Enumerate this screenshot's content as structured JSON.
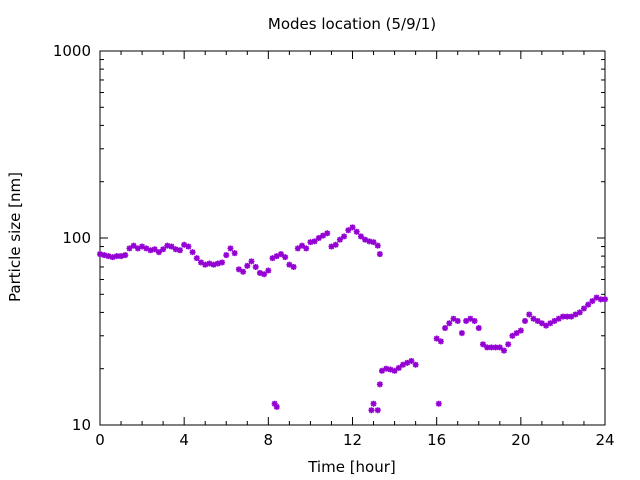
{
  "chart_data": {
    "type": "scatter",
    "title": "Modes location (5/9/1)",
    "xlabel": "Time [hour]",
    "ylabel": "Particle size [nm]",
    "xlim": [
      0,
      24
    ],
    "ylim": [
      10,
      1000
    ],
    "yscale": "log",
    "xticks": [
      0,
      4,
      8,
      12,
      16,
      20,
      24
    ],
    "yticks": [
      10,
      100,
      1000
    ],
    "xtick_labels": [
      "0",
      "4",
      "8",
      "12",
      "16",
      "20",
      "24"
    ],
    "ytick_labels": [
      "10",
      "100",
      "1000"
    ],
    "marker_color": "#9400d3",
    "marker": "star",
    "grid": false,
    "series": [
      {
        "points": [
          [
            0.0,
            82
          ],
          [
            0.2,
            81
          ],
          [
            0.4,
            80
          ],
          [
            0.6,
            79
          ],
          [
            0.8,
            80
          ],
          [
            1.0,
            80
          ],
          [
            1.2,
            81
          ],
          [
            1.4,
            88
          ],
          [
            1.6,
            91
          ],
          [
            1.8,
            88
          ],
          [
            2.0,
            90
          ],
          [
            2.2,
            88
          ],
          [
            2.4,
            86
          ],
          [
            2.6,
            87
          ],
          [
            2.8,
            84
          ],
          [
            3.0,
            87
          ],
          [
            3.2,
            91
          ],
          [
            3.4,
            90
          ],
          [
            3.6,
            87
          ],
          [
            3.8,
            86
          ],
          [
            4.0,
            92
          ],
          [
            4.2,
            90
          ],
          [
            4.4,
            84
          ],
          [
            4.6,
            78
          ],
          [
            4.8,
            74
          ],
          [
            5.0,
            72
          ],
          [
            5.2,
            73
          ],
          [
            5.4,
            72
          ],
          [
            5.6,
            73
          ],
          [
            5.8,
            74
          ],
          [
            6.0,
            81
          ],
          [
            6.2,
            88
          ],
          [
            6.4,
            83
          ],
          [
            6.6,
            68
          ],
          [
            6.8,
            66
          ],
          [
            7.0,
            71
          ],
          [
            7.2,
            75
          ],
          [
            7.4,
            70
          ],
          [
            7.6,
            65
          ],
          [
            7.8,
            64
          ],
          [
            8.0,
            67
          ],
          [
            8.2,
            78
          ],
          [
            8.4,
            80
          ],
          [
            8.6,
            82
          ],
          [
            8.8,
            79
          ],
          [
            9.0,
            72
          ],
          [
            9.2,
            70
          ],
          [
            9.4,
            88
          ],
          [
            9.6,
            91
          ],
          [
            9.8,
            88
          ],
          [
            10.0,
            95
          ],
          [
            10.2,
            96
          ],
          [
            10.4,
            100
          ],
          [
            10.6,
            103
          ],
          [
            10.8,
            106
          ],
          [
            11.0,
            90
          ],
          [
            11.2,
            92
          ],
          [
            11.4,
            98
          ],
          [
            11.6,
            102
          ],
          [
            11.8,
            110
          ],
          [
            12.0,
            114
          ],
          [
            12.2,
            108
          ],
          [
            12.4,
            102
          ],
          [
            12.6,
            98
          ],
          [
            12.8,
            96
          ],
          [
            13.0,
            95
          ],
          [
            13.2,
            91
          ],
          [
            13.3,
            82
          ],
          [
            8.3,
            13
          ],
          [
            8.4,
            12.5
          ],
          [
            12.9,
            12
          ],
          [
            13.0,
            13
          ],
          [
            13.2,
            12
          ],
          [
            13.3,
            16.5
          ],
          [
            13.4,
            19.5
          ],
          [
            13.6,
            20
          ],
          [
            13.8,
            19.8
          ],
          [
            14.0,
            19.5
          ],
          [
            14.2,
            20.2
          ],
          [
            14.4,
            21
          ],
          [
            14.6,
            21.5
          ],
          [
            14.8,
            22
          ],
          [
            15.0,
            21
          ],
          [
            16.1,
            13
          ],
          [
            16.0,
            29
          ],
          [
            16.2,
            28
          ],
          [
            16.4,
            33
          ],
          [
            16.6,
            35
          ],
          [
            16.8,
            37
          ],
          [
            17.0,
            36
          ],
          [
            17.2,
            31
          ],
          [
            17.4,
            36
          ],
          [
            17.6,
            37
          ],
          [
            17.8,
            36
          ],
          [
            18.0,
            33
          ],
          [
            18.2,
            27
          ],
          [
            18.4,
            26
          ],
          [
            18.6,
            26
          ],
          [
            18.8,
            26
          ],
          [
            19.0,
            26
          ],
          [
            19.2,
            25
          ],
          [
            19.4,
            27
          ],
          [
            19.6,
            30
          ],
          [
            19.8,
            31
          ],
          [
            20.0,
            32
          ],
          [
            20.2,
            36
          ],
          [
            20.4,
            39
          ],
          [
            20.6,
            37
          ],
          [
            20.8,
            36
          ],
          [
            21.0,
            35
          ],
          [
            21.2,
            34
          ],
          [
            21.4,
            35
          ],
          [
            21.6,
            36
          ],
          [
            21.8,
            37
          ],
          [
            22.0,
            38
          ],
          [
            22.2,
            38
          ],
          [
            22.4,
            38
          ],
          [
            22.6,
            39
          ],
          [
            22.8,
            40
          ],
          [
            23.0,
            42
          ],
          [
            23.2,
            44
          ],
          [
            23.4,
            46
          ],
          [
            23.6,
            48
          ],
          [
            23.8,
            47
          ],
          [
            24.0,
            47
          ]
        ]
      }
    ]
  }
}
